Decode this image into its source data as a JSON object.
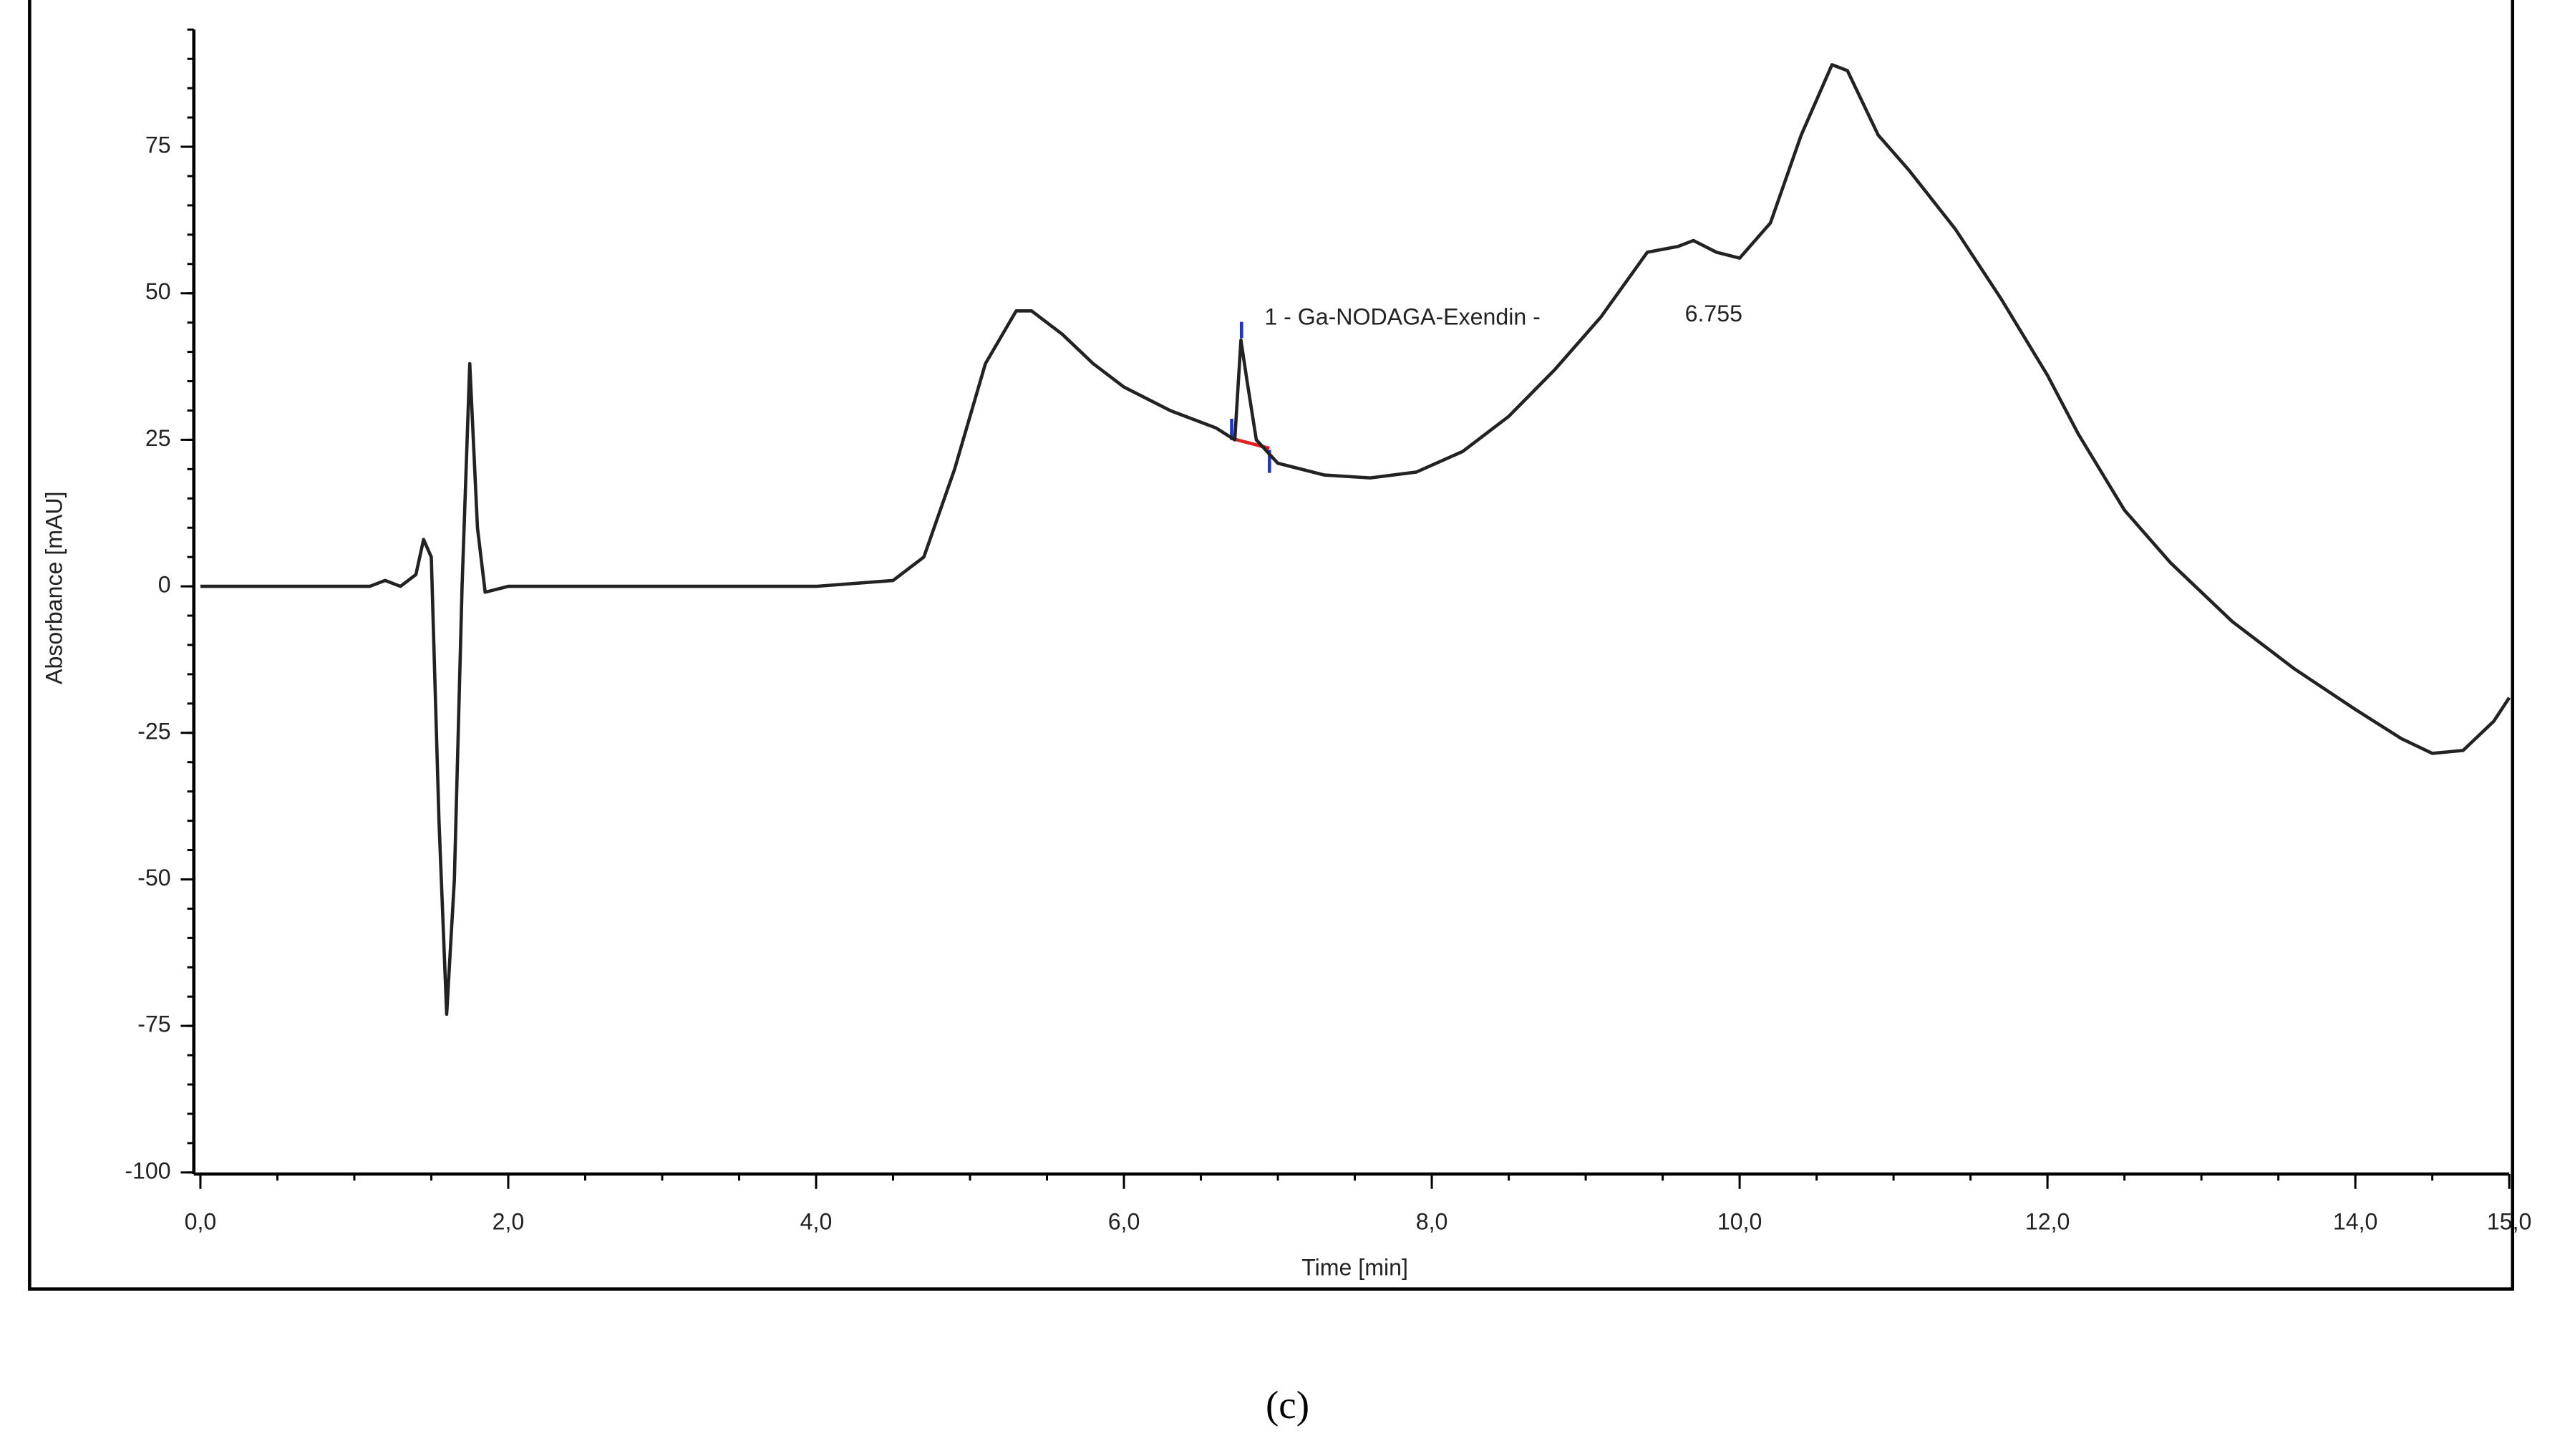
{
  "chart_data": {
    "type": "line",
    "xlabel": "Time [min]",
    "ylabel": "Absorbance [mAU]",
    "caption": "(c)",
    "annotation": "1 - Ga-NODAGA-Exendin -",
    "annotation_value": "6.755",
    "color": "#222222",
    "xlim": [
      0,
      15
    ],
    "ylim": [
      -100,
      95
    ],
    "xticks": [
      {
        "value": 0,
        "label": "0,0"
      },
      {
        "value": 2,
        "label": "2,0"
      },
      {
        "value": 4,
        "label": "4,0"
      },
      {
        "value": 6,
        "label": "6,0"
      },
      {
        "value": 8,
        "label": "8,0"
      },
      {
        "value": 10,
        "label": "10,0"
      },
      {
        "value": 12,
        "label": "12,0"
      },
      {
        "value": 14,
        "label": "14,0"
      },
      {
        "value": 15,
        "label": "15,0"
      }
    ],
    "yticks": [
      75,
      50,
      25,
      0,
      -25,
      -50,
      -75,
      -100
    ],
    "x": [
      0,
      1.1,
      1.2,
      1.3,
      1.4,
      1.45,
      1.5,
      1.55,
      1.6,
      1.65,
      1.7,
      1.75,
      1.8,
      1.85,
      2.0,
      3.0,
      4.0,
      4.5,
      4.7,
      4.9,
      5.1,
      5.3,
      5.4,
      5.6,
      5.8,
      6.0,
      6.3,
      6.6,
      6.72,
      6.76,
      6.8,
      6.86,
      7.0,
      7.3,
      7.6,
      7.9,
      8.2,
      8.5,
      8.8,
      9.1,
      9.4,
      9.6,
      9.7,
      9.85,
      10.0,
      10.2,
      10.4,
      10.6,
      10.7,
      10.9,
      11.1,
      11.4,
      11.7,
      12.0,
      12.2,
      12.5,
      12.8,
      13.2,
      13.6,
      14.0,
      14.3,
      14.5,
      14.7,
      14.9,
      15.0
    ],
    "values": [
      0,
      0,
      1,
      0,
      2,
      8,
      5,
      -40,
      -73,
      -50,
      0,
      38,
      10,
      -1,
      0,
      0,
      0,
      1,
      5,
      20,
      38,
      47,
      47,
      43,
      38,
      34,
      30,
      27,
      25,
      42,
      35,
      25,
      21,
      19,
      18.5,
      19.5,
      23,
      29,
      37,
      46,
      57,
      58,
      59,
      57,
      56,
      62,
      77,
      89,
      88,
      77,
      71,
      61,
      49,
      36,
      26,
      13,
      4,
      -6,
      -14,
      -21,
      -26,
      -28.5,
      -28,
      -23,
      -19
    ]
  }
}
